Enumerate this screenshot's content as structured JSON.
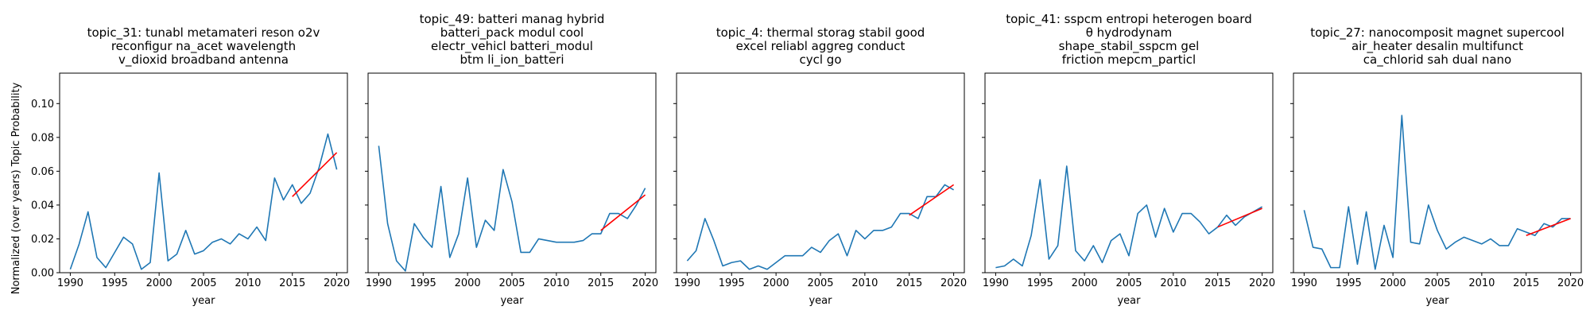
{
  "figure": {
    "ylabel": "Normalized (over years) Topic Probability",
    "xlabel": "year"
  },
  "chart_data": [
    {
      "type": "line",
      "title_lines": [
        "topic_31: tunabl metamateri reson o2v",
        "reconfigur na_acet wavelength",
        "v_dioxid broadband antenna"
      ],
      "xlabel": "year",
      "ylabel": "Normalized (over years) Topic Probability",
      "xlim": [
        1988.8,
        2021.2
      ],
      "ylim": [
        0,
        0.118
      ],
      "xticks": [
        1990,
        1995,
        2000,
        2005,
        2010,
        2015,
        2020
      ],
      "yticks": [
        0.0,
        0.02,
        0.04,
        0.06,
        0.08,
        0.1
      ],
      "ytick_labels": [
        "0.00",
        "0.02",
        "0.04",
        "0.06",
        "0.08",
        "0.10"
      ],
      "show_yticklabels": true,
      "series": [
        {
          "color": "#1f77b4",
          "x": [
            1990,
            1991,
            1992,
            1993,
            1994,
            1995,
            1996,
            1997,
            1998,
            1999,
            2000,
            2001,
            2002,
            2003,
            2004,
            2005,
            2006,
            2007,
            2008,
            2009,
            2010,
            2011,
            2012,
            2013,
            2014,
            2015,
            2016,
            2017,
            2018,
            2019,
            2020
          ],
          "y": [
            0.002,
            0.017,
            0.036,
            0.009,
            0.003,
            0.012,
            0.021,
            0.017,
            0.002,
            0.006,
            0.059,
            0.007,
            0.011,
            0.025,
            0.011,
            0.013,
            0.018,
            0.02,
            0.017,
            0.023,
            0.02,
            0.027,
            0.019,
            0.056,
            0.043,
            0.052,
            0.041,
            0.047,
            0.062,
            0.082,
            0.061
          ]
        }
      ],
      "trend": {
        "color": "#ff0000",
        "x": [
          2015,
          2020
        ],
        "y": [
          0.045,
          0.071
        ]
      }
    },
    {
      "type": "line",
      "title_lines": [
        "topic_49: batteri manag hybrid",
        "batteri_pack modul cool",
        "electr_vehicl batteri_modul",
        "btm li_ion_batteri"
      ],
      "xlabel": "year",
      "xlim": [
        1988.8,
        2021.2
      ],
      "ylim": [
        0,
        0.118
      ],
      "xticks": [
        1990,
        1995,
        2000,
        2005,
        2010,
        2015,
        2020
      ],
      "yticks": [
        0.0,
        0.02,
        0.04,
        0.06,
        0.08,
        0.1
      ],
      "show_yticklabels": false,
      "series": [
        {
          "color": "#1f77b4",
          "x": [
            1990,
            1991,
            1992,
            1993,
            1994,
            1995,
            1996,
            1997,
            1998,
            1999,
            2000,
            2001,
            2002,
            2003,
            2004,
            2005,
            2006,
            2007,
            2008,
            2009,
            2010,
            2011,
            2012,
            2013,
            2014,
            2015,
            2016,
            2017,
            2018,
            2019,
            2020
          ],
          "y": [
            0.075,
            0.029,
            0.007,
            0.001,
            0.029,
            0.021,
            0.015,
            0.051,
            0.009,
            0.023,
            0.056,
            0.015,
            0.031,
            0.025,
            0.061,
            0.042,
            0.012,
            0.012,
            0.02,
            0.019,
            0.018,
            0.018,
            0.018,
            0.019,
            0.023,
            0.023,
            0.035,
            0.035,
            0.032,
            0.04,
            0.05
          ]
        }
      ],
      "trend": {
        "color": "#ff0000",
        "x": [
          2015,
          2020
        ],
        "y": [
          0.025,
          0.046
        ]
      }
    },
    {
      "type": "line",
      "title_lines": [
        "topic_4: thermal storag stabil good",
        "excel reliabl aggreg conduct",
        "cycl go"
      ],
      "xlabel": "year",
      "xlim": [
        1988.8,
        2021.2
      ],
      "ylim": [
        0,
        0.118
      ],
      "xticks": [
        1990,
        1995,
        2000,
        2005,
        2010,
        2015,
        2020
      ],
      "yticks": [
        0.0,
        0.02,
        0.04,
        0.06,
        0.08,
        0.1
      ],
      "show_yticklabels": false,
      "series": [
        {
          "color": "#1f77b4",
          "x": [
            1990,
            1991,
            1992,
            1993,
            1994,
            1995,
            1996,
            1997,
            1998,
            1999,
            2000,
            2001,
            2002,
            2003,
            2004,
            2005,
            2006,
            2007,
            2008,
            2009,
            2010,
            2011,
            2012,
            2013,
            2014,
            2015,
            2016,
            2017,
            2018,
            2019,
            2020
          ],
          "y": [
            0.007,
            0.013,
            0.032,
            0.019,
            0.004,
            0.006,
            0.007,
            0.002,
            0.004,
            0.002,
            0.006,
            0.01,
            0.01,
            0.01,
            0.015,
            0.012,
            0.019,
            0.023,
            0.01,
            0.025,
            0.02,
            0.025,
            0.025,
            0.027,
            0.035,
            0.035,
            0.032,
            0.045,
            0.045,
            0.052,
            0.049
          ]
        }
      ],
      "trend": {
        "color": "#ff0000",
        "x": [
          2015,
          2020
        ],
        "y": [
          0.034,
          0.052
        ]
      }
    },
    {
      "type": "line",
      "title_lines": [
        "topic_41: sspcm entropi heterogen board",
        "θ hydrodynam",
        "shape_stabil_sspcm gel",
        "friction mepcm_particl"
      ],
      "xlabel": "year",
      "xlim": [
        1988.8,
        2021.2
      ],
      "ylim": [
        0,
        0.118
      ],
      "xticks": [
        1990,
        1995,
        2000,
        2005,
        2010,
        2015,
        2020
      ],
      "yticks": [
        0.0,
        0.02,
        0.04,
        0.06,
        0.08,
        0.1
      ],
      "show_yticklabels": false,
      "series": [
        {
          "color": "#1f77b4",
          "x": [
            1990,
            1991,
            1992,
            1993,
            1994,
            1995,
            1996,
            1997,
            1998,
            1999,
            2000,
            2001,
            2002,
            2003,
            2004,
            2005,
            2006,
            2007,
            2008,
            2009,
            2010,
            2011,
            2012,
            2013,
            2014,
            2015,
            2016,
            2017,
            2018,
            2019,
            2020
          ],
          "y": [
            0.003,
            0.004,
            0.008,
            0.004,
            0.022,
            0.055,
            0.008,
            0.016,
            0.063,
            0.013,
            0.007,
            0.016,
            0.006,
            0.019,
            0.023,
            0.01,
            0.035,
            0.04,
            0.021,
            0.038,
            0.024,
            0.035,
            0.035,
            0.03,
            0.023,
            0.027,
            0.034,
            0.028,
            0.033,
            0.036,
            0.039
          ]
        }
      ],
      "trend": {
        "color": "#ff0000",
        "x": [
          2015,
          2020
        ],
        "y": [
          0.027,
          0.038
        ]
      }
    },
    {
      "type": "line",
      "title_lines": [
        "topic_27: nanocomposit magnet supercool",
        "air_heater desalin multifunct",
        "ca_chlorid sah dual nano"
      ],
      "xlabel": "year",
      "xlim": [
        1988.8,
        2021.2
      ],
      "ylim": [
        0,
        0.118
      ],
      "xticks": [
        1990,
        1995,
        2000,
        2005,
        2010,
        2015,
        2020
      ],
      "yticks": [
        0.0,
        0.02,
        0.04,
        0.06,
        0.08,
        0.1
      ],
      "show_yticklabels": false,
      "series": [
        {
          "color": "#1f77b4",
          "x": [
            1990,
            1991,
            1992,
            1993,
            1994,
            1995,
            1996,
            1997,
            1998,
            1999,
            2000,
            2001,
            2002,
            2003,
            2004,
            2005,
            2006,
            2007,
            2008,
            2009,
            2010,
            2011,
            2012,
            2013,
            2014,
            2015,
            2016,
            2017,
            2018,
            2019,
            2020
          ],
          "y": [
            0.037,
            0.015,
            0.014,
            0.003,
            0.003,
            0.039,
            0.005,
            0.036,
            0.002,
            0.028,
            0.009,
            0.093,
            0.018,
            0.017,
            0.04,
            0.025,
            0.014,
            0.018,
            0.021,
            0.019,
            0.017,
            0.02,
            0.016,
            0.016,
            0.026,
            0.024,
            0.022,
            0.029,
            0.027,
            0.032,
            0.032
          ]
        }
      ],
      "trend": {
        "color": "#ff0000",
        "x": [
          2015,
          2020
        ],
        "y": [
          0.022,
          0.032
        ]
      }
    }
  ]
}
